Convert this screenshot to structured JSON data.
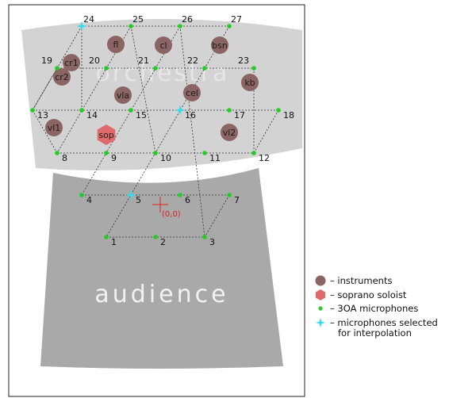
{
  "zones": {
    "orchestra": "orchestra",
    "audience": "audience"
  },
  "origin_label": "(0,0)",
  "colors": {
    "orchestra_fill": "#d3d3d3",
    "audience_fill": "#a9a9a9",
    "instrument": "#8b6464",
    "soprano": "#e06a6a",
    "mic": "#22cc22",
    "selected_mic": "#33ddee",
    "origin": "#dd2222"
  },
  "microphones": [
    {
      "id": "1"
    },
    {
      "id": "2"
    },
    {
      "id": "3"
    },
    {
      "id": "4"
    },
    {
      "id": "5",
      "selected": true
    },
    {
      "id": "6"
    },
    {
      "id": "7"
    },
    {
      "id": "8"
    },
    {
      "id": "9"
    },
    {
      "id": "10"
    },
    {
      "id": "11"
    },
    {
      "id": "12"
    },
    {
      "id": "13"
    },
    {
      "id": "14"
    },
    {
      "id": "15"
    },
    {
      "id": "16",
      "selected": true
    },
    {
      "id": "17"
    },
    {
      "id": "18"
    },
    {
      "id": "19"
    },
    {
      "id": "20"
    },
    {
      "id": "21"
    },
    {
      "id": "22"
    },
    {
      "id": "23"
    },
    {
      "id": "24",
      "selected": true
    },
    {
      "id": "25"
    },
    {
      "id": "26"
    },
    {
      "id": "27"
    }
  ],
  "instruments": [
    {
      "id": "fl",
      "label": "fl"
    },
    {
      "id": "cl",
      "label": "cl"
    },
    {
      "id": "bsn",
      "label": "bsn"
    },
    {
      "id": "cr1",
      "label": "cr1"
    },
    {
      "id": "cr2",
      "label": "cr2"
    },
    {
      "id": "kb",
      "label": "kb"
    },
    {
      "id": "vla",
      "label": "vla"
    },
    {
      "id": "cel",
      "label": "cel"
    },
    {
      "id": "vl1",
      "label": "vl1"
    },
    {
      "id": "vl2",
      "label": "vl2"
    }
  ],
  "soloist": {
    "label": "sop"
  },
  "legend": [
    {
      "key": "instruments",
      "marker": "circle",
      "text": "– instruments"
    },
    {
      "key": "soprano",
      "marker": "hexagon",
      "text": "– soprano soloist"
    },
    {
      "key": "mics",
      "marker": "dot",
      "text": "– 3OA microphones"
    },
    {
      "key": "selected",
      "marker": "star",
      "text": "– microphones selected",
      "text2": "for interpolation"
    }
  ]
}
